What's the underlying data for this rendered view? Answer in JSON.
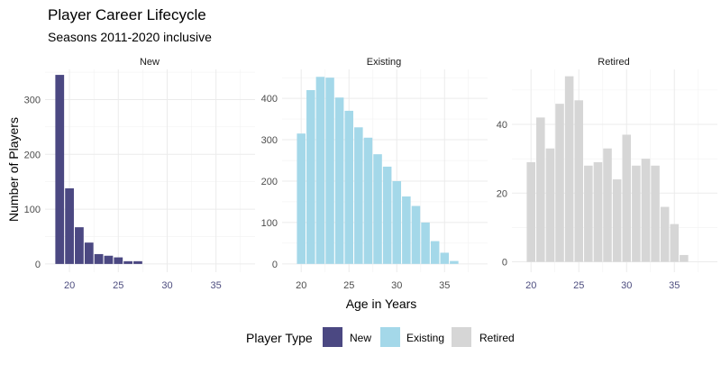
{
  "title": "Player Career Lifecycle",
  "subtitle": "Seasons 2011-2020 inclusive",
  "xlabel": "Age in Years",
  "ylabel": "Number of Players",
  "legend": {
    "title": "Player Type",
    "items": [
      {
        "label": "New",
        "color": "#4b4882"
      },
      {
        "label": "Existing",
        "color": "#a4d8e9"
      },
      {
        "label": "Retired",
        "color": "#d6d6d6"
      }
    ]
  },
  "chart_data": {
    "type": "bar",
    "grid": true,
    "legend_position": "bottom",
    "panels": [
      {
        "name": "New",
        "color": "#4b4882",
        "xlim": [
          17.5,
          39
        ],
        "ylim": [
          -15,
          355
        ],
        "xticks": [
          20,
          25,
          30,
          35
        ],
        "yticks": [
          0,
          100,
          200,
          300
        ],
        "x": [
          19,
          20,
          21,
          22,
          23,
          24,
          25,
          26,
          27
        ],
        "values": [
          345,
          138,
          67,
          39,
          18,
          15,
          12,
          5,
          5
        ]
      },
      {
        "name": "Existing",
        "color": "#a4d8e9",
        "xlim": [
          18,
          39.5
        ],
        "ylim": [
          -20,
          470
        ],
        "xticks": [
          20,
          25,
          30,
          35
        ],
        "yticks": [
          0,
          100,
          200,
          300,
          400
        ],
        "x": [
          20,
          21,
          22,
          23,
          24,
          25,
          26,
          27,
          28,
          29,
          30,
          31,
          32,
          33,
          34,
          35,
          36
        ],
        "values": [
          315,
          420,
          452,
          450,
          402,
          370,
          330,
          305,
          265,
          235,
          200,
          163,
          140,
          100,
          55,
          27,
          7
        ]
      },
      {
        "name": "Retired",
        "color": "#d6d6d6",
        "xlim": [
          18,
          39.5
        ],
        "ylim": [
          -3,
          56
        ],
        "xticks": [
          20,
          25,
          30,
          35
        ],
        "yticks": [
          0,
          20,
          40
        ],
        "x": [
          20,
          21,
          22,
          23,
          24,
          25,
          26,
          27,
          28,
          29,
          30,
          31,
          32,
          33,
          34,
          35,
          36
        ],
        "values": [
          29,
          42,
          33,
          46,
          54,
          47,
          28,
          29,
          33,
          24,
          37,
          28,
          30,
          28,
          16,
          11,
          2
        ]
      }
    ]
  }
}
